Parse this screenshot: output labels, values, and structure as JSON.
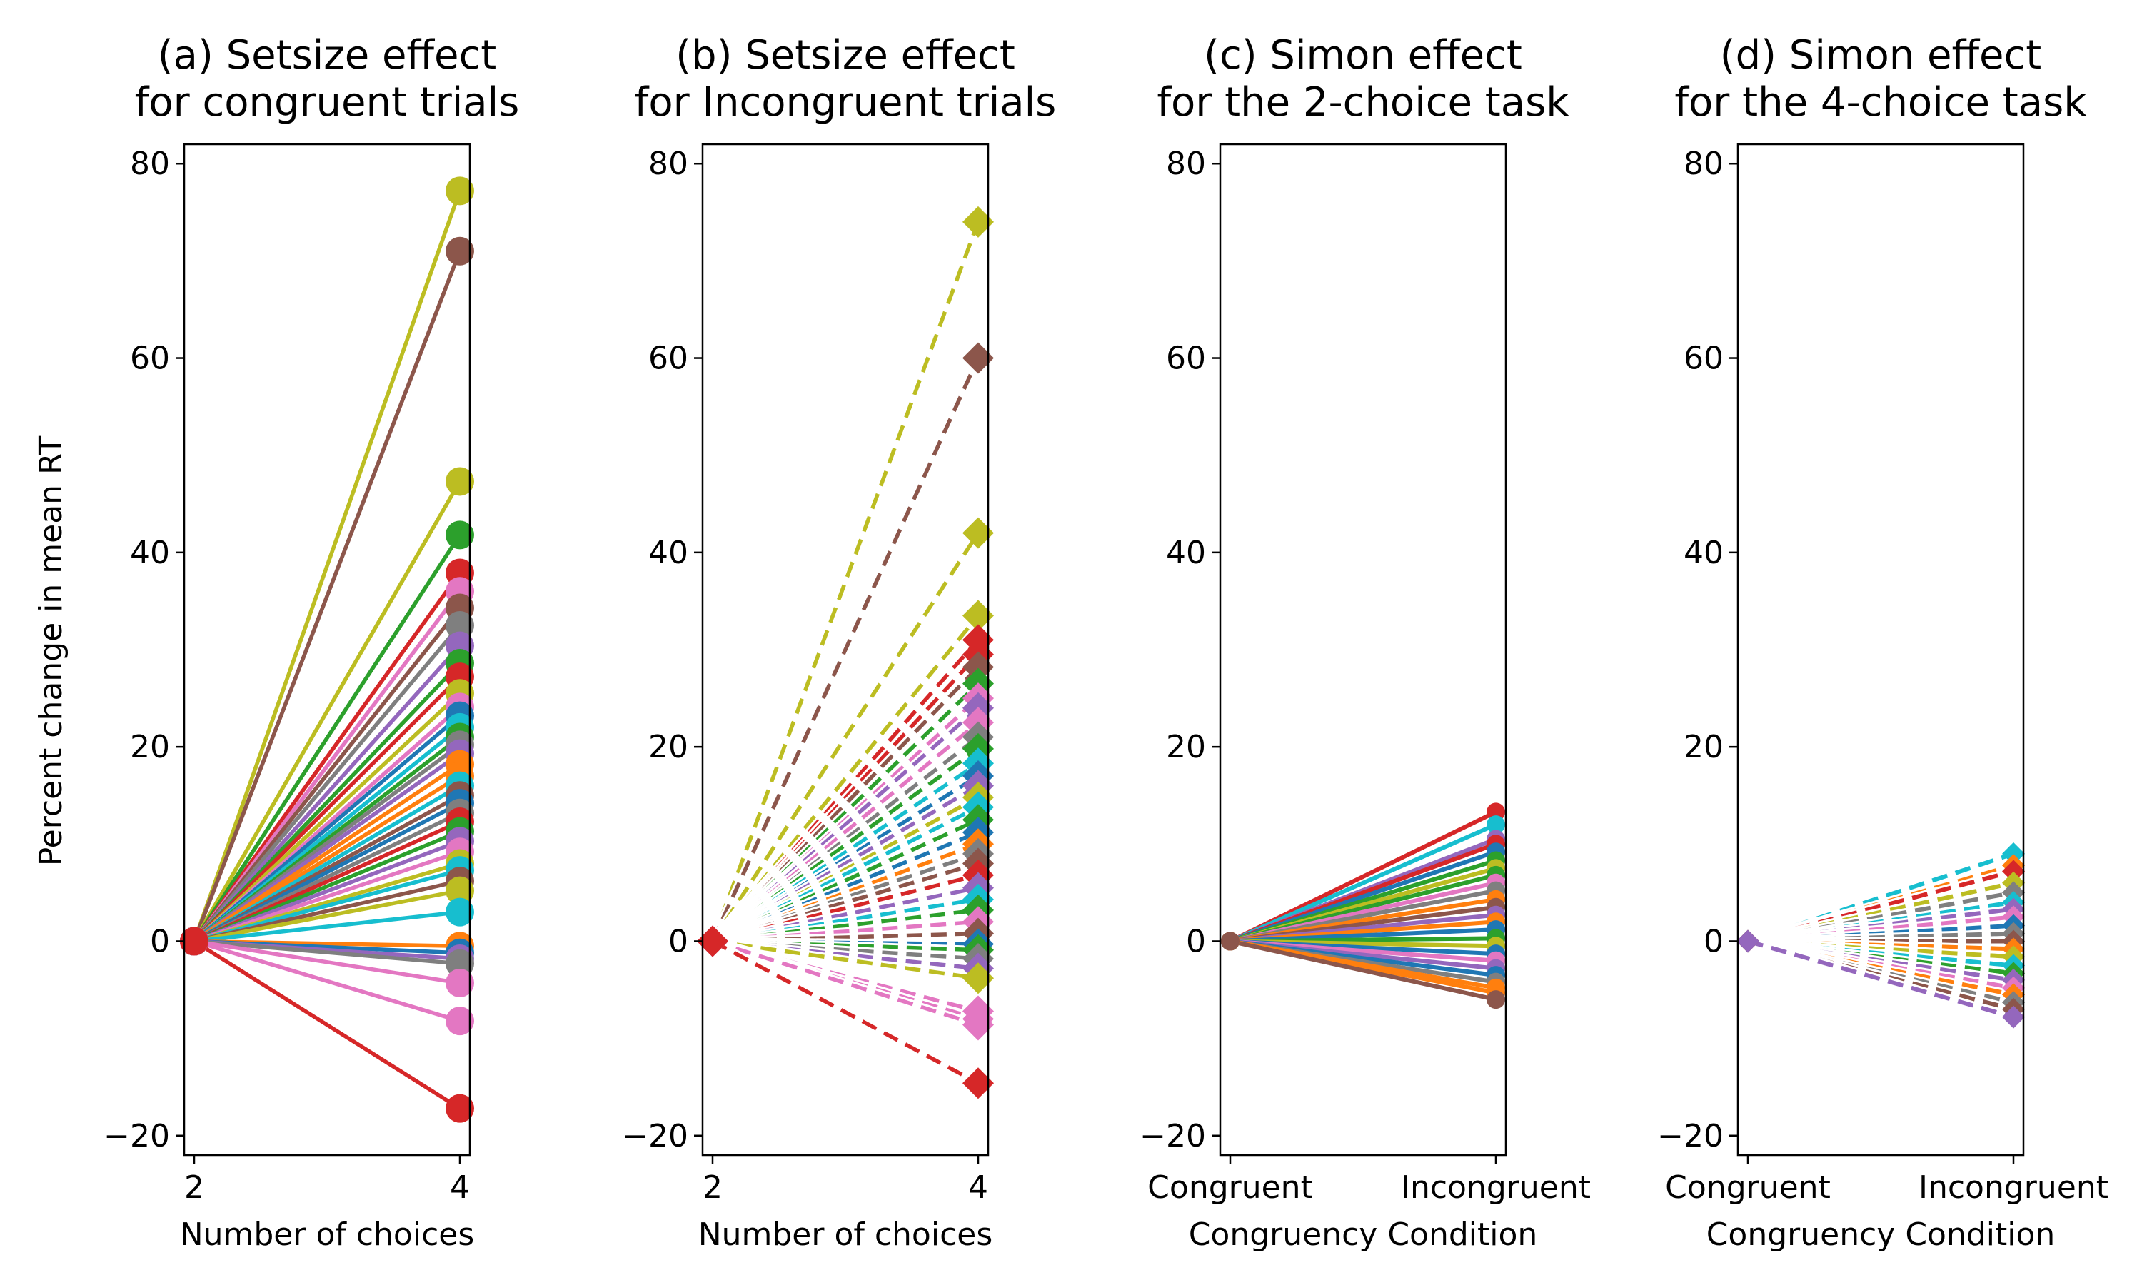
{
  "ylabel": "Percent change in mean RT",
  "palette": [
    "#1f77b4",
    "#ff7f0e",
    "#2ca02c",
    "#d62728",
    "#9467bd",
    "#8c564b",
    "#e377c2",
    "#7f7f7f",
    "#bcbd22",
    "#17becf"
  ],
  "chart_data": [
    {
      "type": "line",
      "title_line1": "(a) Setsize effect",
      "title_line2": "for congruent trials",
      "xlabel": "Number of choices",
      "x": [
        "2",
        "4"
      ],
      "ylim": [
        -22,
        82
      ],
      "yticks": [
        -20,
        0,
        20,
        40,
        60,
        80
      ],
      "marker": "circle",
      "dashed": false,
      "start_value": 0,
      "end_values": [
        {
          "value": 77.2,
          "color": "#bcbd22"
        },
        {
          "value": 71.0,
          "color": "#8c564b"
        },
        {
          "value": 47.3,
          "color": "#bcbd22"
        },
        {
          "value": 41.8,
          "color": "#2ca02c"
        },
        {
          "value": 37.9,
          "color": "#d62728"
        },
        {
          "value": 36.0,
          "color": "#e377c2"
        },
        {
          "value": 34.3,
          "color": "#8c564b"
        },
        {
          "value": 32.5,
          "color": "#7f7f7f"
        },
        {
          "value": 30.4,
          "color": "#9467bd"
        },
        {
          "value": 28.6,
          "color": "#2ca02c"
        },
        {
          "value": 27.2,
          "color": "#d62728"
        },
        {
          "value": 25.5,
          "color": "#bcbd22"
        },
        {
          "value": 24.1,
          "color": "#e377c2"
        },
        {
          "value": 23.2,
          "color": "#1f77b4"
        },
        {
          "value": 22.0,
          "color": "#17becf"
        },
        {
          "value": 21.0,
          "color": "#2ca02c"
        },
        {
          "value": 20.2,
          "color": "#7f7f7f"
        },
        {
          "value": 19.3,
          "color": "#9467bd"
        },
        {
          "value": 18.2,
          "color": "#ff7f0e"
        },
        {
          "value": 17.0,
          "color": "#ff7f0e"
        },
        {
          "value": 16.0,
          "color": "#17becf"
        },
        {
          "value": 15.0,
          "color": "#8c564b"
        },
        {
          "value": 14.2,
          "color": "#1f77b4"
        },
        {
          "value": 13.2,
          "color": "#7f7f7f"
        },
        {
          "value": 12.3,
          "color": "#d62728"
        },
        {
          "value": 11.3,
          "color": "#2ca02c"
        },
        {
          "value": 10.3,
          "color": "#9467bd"
        },
        {
          "value": 9.2,
          "color": "#e377c2"
        },
        {
          "value": 8.0,
          "color": "#bcbd22"
        },
        {
          "value": 7.3,
          "color": "#17becf"
        },
        {
          "value": 6.2,
          "color": "#8c564b"
        },
        {
          "value": 5.2,
          "color": "#bcbd22"
        },
        {
          "value": 3.0,
          "color": "#17becf"
        },
        {
          "value": -0.5,
          "color": "#ff7f0e"
        },
        {
          "value": -1.2,
          "color": "#1f77b4"
        },
        {
          "value": -1.8,
          "color": "#9467bd"
        },
        {
          "value": -2.3,
          "color": "#7f7f7f"
        },
        {
          "value": -4.3,
          "color": "#e377c2"
        },
        {
          "value": -8.2,
          "color": "#e377c2"
        },
        {
          "value": -17.2,
          "color": "#d62728"
        }
      ]
    },
    {
      "type": "line",
      "title_line1": "(b) Setsize effect",
      "title_line2": "for Incongruent trials",
      "xlabel": "Number of choices",
      "x": [
        "2",
        "4"
      ],
      "ylim": [
        -22,
        82
      ],
      "yticks": [
        -20,
        0,
        20,
        40,
        60,
        80
      ],
      "marker": "diamond",
      "dashed": true,
      "start_value": 0,
      "end_values": [
        {
          "value": 74.0,
          "color": "#bcbd22"
        },
        {
          "value": 60.0,
          "color": "#8c564b"
        },
        {
          "value": 42.0,
          "color": "#bcbd22"
        },
        {
          "value": 33.5,
          "color": "#bcbd22"
        },
        {
          "value": 31.0,
          "color": "#d62728"
        },
        {
          "value": 29.5,
          "color": "#d62728"
        },
        {
          "value": 28.2,
          "color": "#8c564b"
        },
        {
          "value": 26.5,
          "color": "#2ca02c"
        },
        {
          "value": 25.0,
          "color": "#e377c2"
        },
        {
          "value": 24.0,
          "color": "#9467bd"
        },
        {
          "value": 22.5,
          "color": "#e377c2"
        },
        {
          "value": 21.0,
          "color": "#7f7f7f"
        },
        {
          "value": 19.8,
          "color": "#2ca02c"
        },
        {
          "value": 18.3,
          "color": "#17becf"
        },
        {
          "value": 17.0,
          "color": "#1f77b4"
        },
        {
          "value": 16.0,
          "color": "#9467bd"
        },
        {
          "value": 14.8,
          "color": "#bcbd22"
        },
        {
          "value": 13.8,
          "color": "#17becf"
        },
        {
          "value": 12.5,
          "color": "#2ca02c"
        },
        {
          "value": 11.2,
          "color": "#1f77b4"
        },
        {
          "value": 10.0,
          "color": "#ff7f0e"
        },
        {
          "value": 9.0,
          "color": "#7f7f7f"
        },
        {
          "value": 8.0,
          "color": "#8c564b"
        },
        {
          "value": 6.8,
          "color": "#d62728"
        },
        {
          "value": 5.5,
          "color": "#9467bd"
        },
        {
          "value": 4.3,
          "color": "#17becf"
        },
        {
          "value": 3.2,
          "color": "#2ca02c"
        },
        {
          "value": 2.0,
          "color": "#e377c2"
        },
        {
          "value": 0.8,
          "color": "#8c564b"
        },
        {
          "value": -0.3,
          "color": "#1f77b4"
        },
        {
          "value": -0.9,
          "color": "#2ca02c"
        },
        {
          "value": -1.8,
          "color": "#7f7f7f"
        },
        {
          "value": -2.8,
          "color": "#9467bd"
        },
        {
          "value": -3.8,
          "color": "#bcbd22"
        },
        {
          "value": -7.2,
          "color": "#e377c2"
        },
        {
          "value": -8.0,
          "color": "#e377c2"
        },
        {
          "value": -8.6,
          "color": "#e377c2"
        },
        {
          "value": -14.6,
          "color": "#d62728"
        }
      ]
    },
    {
      "type": "line",
      "title_line1": "(c) Simon effect",
      "title_line2": "for the 2-choice task",
      "xlabel": "Congruency Condition",
      "x": [
        "Congruent",
        "Incongruent"
      ],
      "ylim": [
        -22,
        82
      ],
      "yticks": [
        -20,
        0,
        20,
        40,
        60,
        80
      ],
      "marker": "circle-small",
      "dashed": false,
      "start_value": 0,
      "end_values": [
        {
          "value": 13.3,
          "color": "#d62728"
        },
        {
          "value": 12.0,
          "color": "#17becf"
        },
        {
          "value": 10.5,
          "color": "#9467bd"
        },
        {
          "value": 10.0,
          "color": "#d62728"
        },
        {
          "value": 9.2,
          "color": "#1f77b4"
        },
        {
          "value": 8.3,
          "color": "#2ca02c"
        },
        {
          "value": 7.5,
          "color": "#bcbd22"
        },
        {
          "value": 6.8,
          "color": "#2ca02c"
        },
        {
          "value": 6.0,
          "color": "#e377c2"
        },
        {
          "value": 5.2,
          "color": "#7f7f7f"
        },
        {
          "value": 4.3,
          "color": "#ff7f0e"
        },
        {
          "value": 3.5,
          "color": "#8c564b"
        },
        {
          "value": 2.7,
          "color": "#9467bd"
        },
        {
          "value": 2.0,
          "color": "#ff7f0e"
        },
        {
          "value": 1.2,
          "color": "#1f77b4"
        },
        {
          "value": 0.3,
          "color": "#2ca02c"
        },
        {
          "value": -0.5,
          "color": "#bcbd22"
        },
        {
          "value": -1.3,
          "color": "#1f77b4"
        },
        {
          "value": -2.0,
          "color": "#e377c2"
        },
        {
          "value": -2.8,
          "color": "#9467bd"
        },
        {
          "value": -3.5,
          "color": "#1f77b4"
        },
        {
          "value": -4.2,
          "color": "#7f7f7f"
        },
        {
          "value": -4.8,
          "color": "#ff7f0e"
        },
        {
          "value": -5.3,
          "color": "#ff7f0e"
        },
        {
          "value": -6.0,
          "color": "#8c564b"
        }
      ]
    },
    {
      "type": "line",
      "title_line1": "(d) Simon effect",
      "title_line2": "for the 4-choice task",
      "xlabel": "Congruency Condition",
      "x": [
        "Congruent",
        "Incongruent"
      ],
      "ylim": [
        -22,
        82
      ],
      "yticks": [
        -20,
        0,
        20,
        40,
        60,
        80
      ],
      "marker": "diamond-small",
      "dashed": true,
      "start_value": 0,
      "end_values": [
        {
          "value": 9.0,
          "color": "#17becf"
        },
        {
          "value": 7.8,
          "color": "#ff7f0e"
        },
        {
          "value": 7.2,
          "color": "#d62728"
        },
        {
          "value": 6.0,
          "color": "#bcbd22"
        },
        {
          "value": 5.0,
          "color": "#7f7f7f"
        },
        {
          "value": 4.0,
          "color": "#17becf"
        },
        {
          "value": 3.3,
          "color": "#9467bd"
        },
        {
          "value": 2.5,
          "color": "#e377c2"
        },
        {
          "value": 1.6,
          "color": "#1f77b4"
        },
        {
          "value": 0.8,
          "color": "#7f7f7f"
        },
        {
          "value": 0.0,
          "color": "#8c564b"
        },
        {
          "value": -0.8,
          "color": "#ff7f0e"
        },
        {
          "value": -1.6,
          "color": "#bcbd22"
        },
        {
          "value": -2.5,
          "color": "#17becf"
        },
        {
          "value": -3.3,
          "color": "#2ca02c"
        },
        {
          "value": -4.0,
          "color": "#9467bd"
        },
        {
          "value": -4.8,
          "color": "#e377c2"
        },
        {
          "value": -5.5,
          "color": "#ff7f0e"
        },
        {
          "value": -6.3,
          "color": "#7f7f7f"
        },
        {
          "value": -7.0,
          "color": "#8c564b"
        },
        {
          "value": -7.8,
          "color": "#9467bd"
        }
      ]
    }
  ]
}
